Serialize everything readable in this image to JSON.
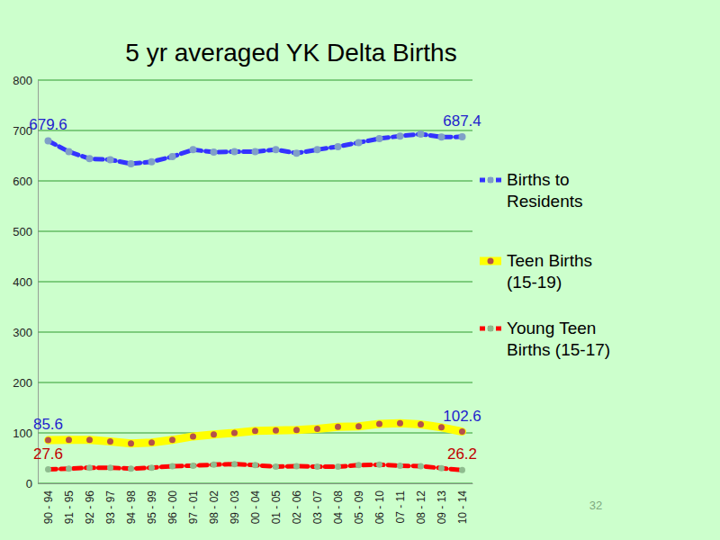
{
  "chart_data": {
    "type": "line",
    "title": "5 yr averaged YK Delta Births",
    "categories": [
      "90 - 94",
      "91 - 95",
      "92 - 96",
      "93 - 97",
      "94 - 98",
      "95 - 99",
      "96 - 00",
      "97 - 01",
      "98 - 02",
      "99 - 03",
      "00 - 04",
      "01 - 05",
      "02 - 06",
      "03 - 07",
      "04 - 08",
      "05 - 09",
      "06 - 10",
      "07 - 11",
      "08 - 12",
      "09 - 13",
      "10 - 14"
    ],
    "series": [
      {
        "name": "Births to Residents",
        "color": "#3333ff",
        "marker": "circle",
        "line_style": "dashed",
        "values": [
          679.6,
          658,
          644,
          642,
          634,
          638,
          648,
          662,
          657,
          658,
          658,
          662,
          655,
          662,
          668,
          676,
          684,
          689,
          693,
          687,
          687.4
        ],
        "value_labels": [
          "679.6",
          null,
          null,
          null,
          null,
          null,
          null,
          null,
          null,
          null,
          null,
          null,
          null,
          null,
          null,
          null,
          null,
          null,
          null,
          null,
          "687.4"
        ]
      },
      {
        "name": "Teen Births (15-19)",
        "color": "#ffff00",
        "marker": "circle",
        "line_style": "solid",
        "values": [
          85.6,
          86,
          86,
          83,
          79,
          81,
          86,
          93,
          97,
          100,
          104,
          105,
          106,
          108,
          112,
          113,
          118,
          119,
          117,
          111,
          102.6
        ],
        "value_labels": [
          "85.6",
          null,
          null,
          null,
          null,
          null,
          null,
          null,
          null,
          null,
          null,
          null,
          null,
          null,
          null,
          null,
          null,
          null,
          null,
          null,
          "102.6"
        ]
      },
      {
        "name": "Young Teen Births (15-17)",
        "color": "#ff0000",
        "marker": "circle",
        "line_style": "dashed",
        "values": [
          27.6,
          29,
          31,
          31,
          29,
          31,
          34,
          35,
          37,
          38,
          36,
          33,
          34,
          33,
          33,
          36,
          37,
          35,
          34,
          30,
          26.2
        ],
        "value_labels": [
          "27.6",
          null,
          null,
          null,
          null,
          null,
          null,
          null,
          null,
          null,
          null,
          null,
          null,
          null,
          null,
          null,
          null,
          null,
          null,
          null,
          "26.2"
        ]
      }
    ],
    "ylim": [
      0,
      800
    ],
    "yticks": [
      0,
      100,
      200,
      300,
      400,
      500,
      600,
      700,
      800
    ],
    "grid": true,
    "legend": "right"
  },
  "slide_number": "32"
}
